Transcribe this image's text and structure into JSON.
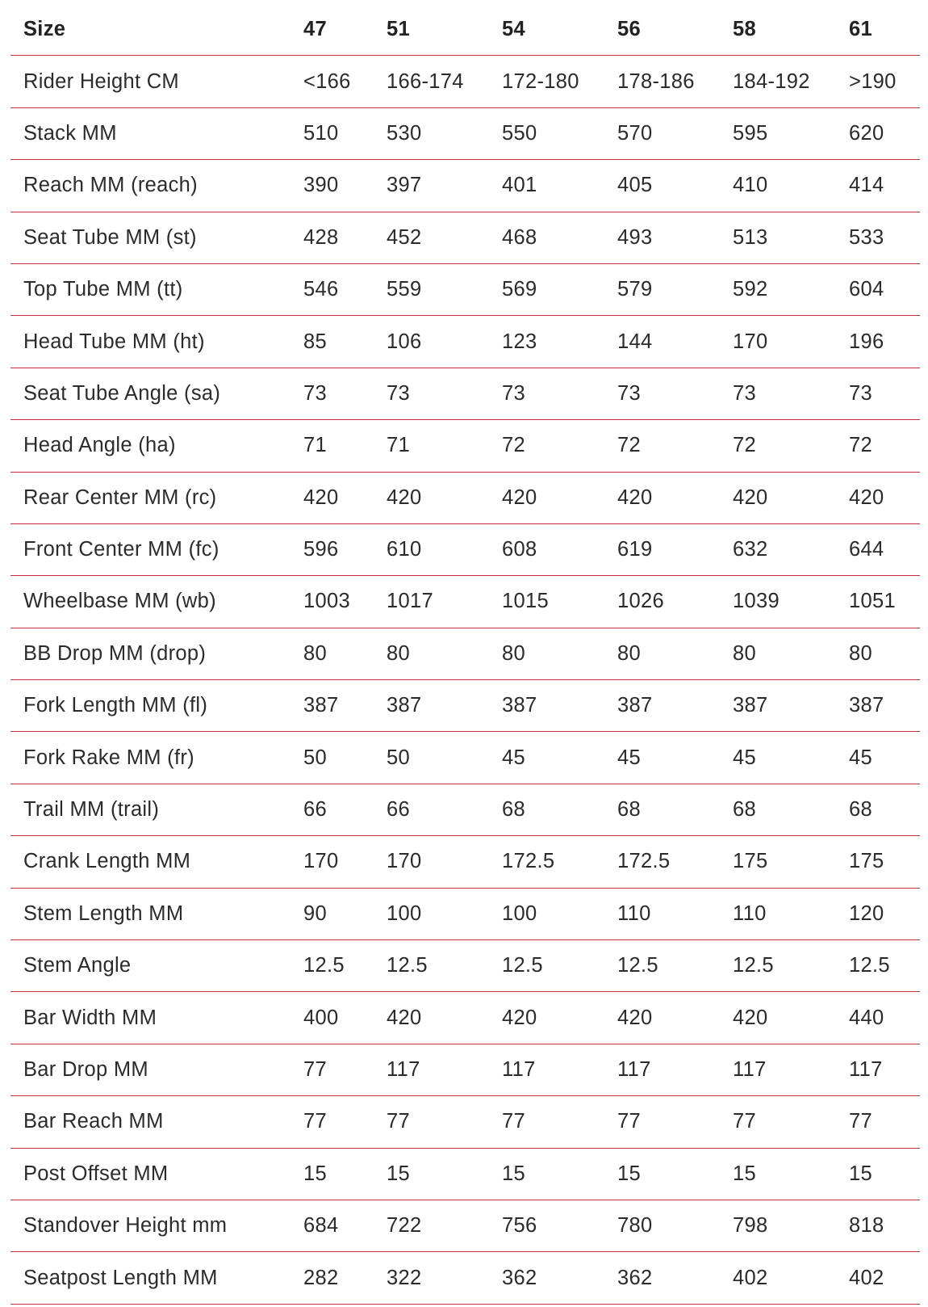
{
  "table": {
    "header": [
      "Size",
      "47",
      "51",
      "54",
      "56",
      "58",
      "61"
    ],
    "rows": [
      [
        "Rider Height CM",
        "<166",
        "166-174",
        "172-180",
        "178-186",
        "184-192",
        ">190"
      ],
      [
        "Stack MM",
        "510",
        "530",
        "550",
        "570",
        "595",
        "620"
      ],
      [
        "Reach MM (reach)",
        "390",
        "397",
        "401",
        "405",
        "410",
        "414"
      ],
      [
        "Seat Tube MM (st)",
        "428",
        "452",
        "468",
        "493",
        "513",
        "533"
      ],
      [
        "Top Tube MM (tt)",
        "546",
        "559",
        "569",
        "579",
        "592",
        "604"
      ],
      [
        "Head Tube MM (ht)",
        "85",
        "106",
        "123",
        "144",
        "170",
        "196"
      ],
      [
        "Seat Tube Angle (sa)",
        "73",
        "73",
        "73",
        "73",
        "73",
        "73"
      ],
      [
        "Head Angle (ha)",
        "71",
        "71",
        "72",
        "72",
        "72",
        "72"
      ],
      [
        "Rear Center MM (rc)",
        "420",
        "420",
        "420",
        "420",
        "420",
        "420"
      ],
      [
        "Front Center MM (fc)",
        "596",
        "610",
        "608",
        "619",
        "632",
        "644"
      ],
      [
        "Wheelbase MM (wb)",
        "1003",
        "1017",
        "1015",
        "1026",
        "1039",
        "1051"
      ],
      [
        "BB Drop MM (drop)",
        "80",
        "80",
        "80",
        "80",
        "80",
        "80"
      ],
      [
        "Fork Length MM (fl)",
        "387",
        "387",
        "387",
        "387",
        "387",
        "387"
      ],
      [
        "Fork Rake MM (fr)",
        "50",
        "50",
        "45",
        "45",
        "45",
        "45"
      ],
      [
        "Trail MM (trail)",
        "66",
        "66",
        "68",
        "68",
        "68",
        "68"
      ],
      [
        "Crank Length MM",
        "170",
        "170",
        "172.5",
        "172.5",
        "175",
        "175"
      ],
      [
        "Stem Length MM",
        "90",
        "100",
        "100",
        "110",
        "110",
        "120"
      ],
      [
        "Stem Angle",
        "12.5",
        "12.5",
        "12.5",
        "12.5",
        "12.5",
        "12.5"
      ],
      [
        "Bar Width MM",
        "400",
        "420",
        "420",
        "420",
        "420",
        "440"
      ],
      [
        "Bar Drop MM",
        "77",
        "117",
        "117",
        "117",
        "117",
        "117"
      ],
      [
        "Bar Reach MM",
        "77",
        "77",
        "77",
        "77",
        "77",
        "77"
      ],
      [
        "Post Offset MM",
        "15",
        "15",
        "15",
        "15",
        "15",
        "15"
      ],
      [
        "Standover Height mm",
        "684",
        "722",
        "756",
        "780",
        "798",
        "818"
      ],
      [
        "Seatpost Length MM",
        "282",
        "322",
        "362",
        "362",
        "402",
        "402"
      ]
    ]
  }
}
